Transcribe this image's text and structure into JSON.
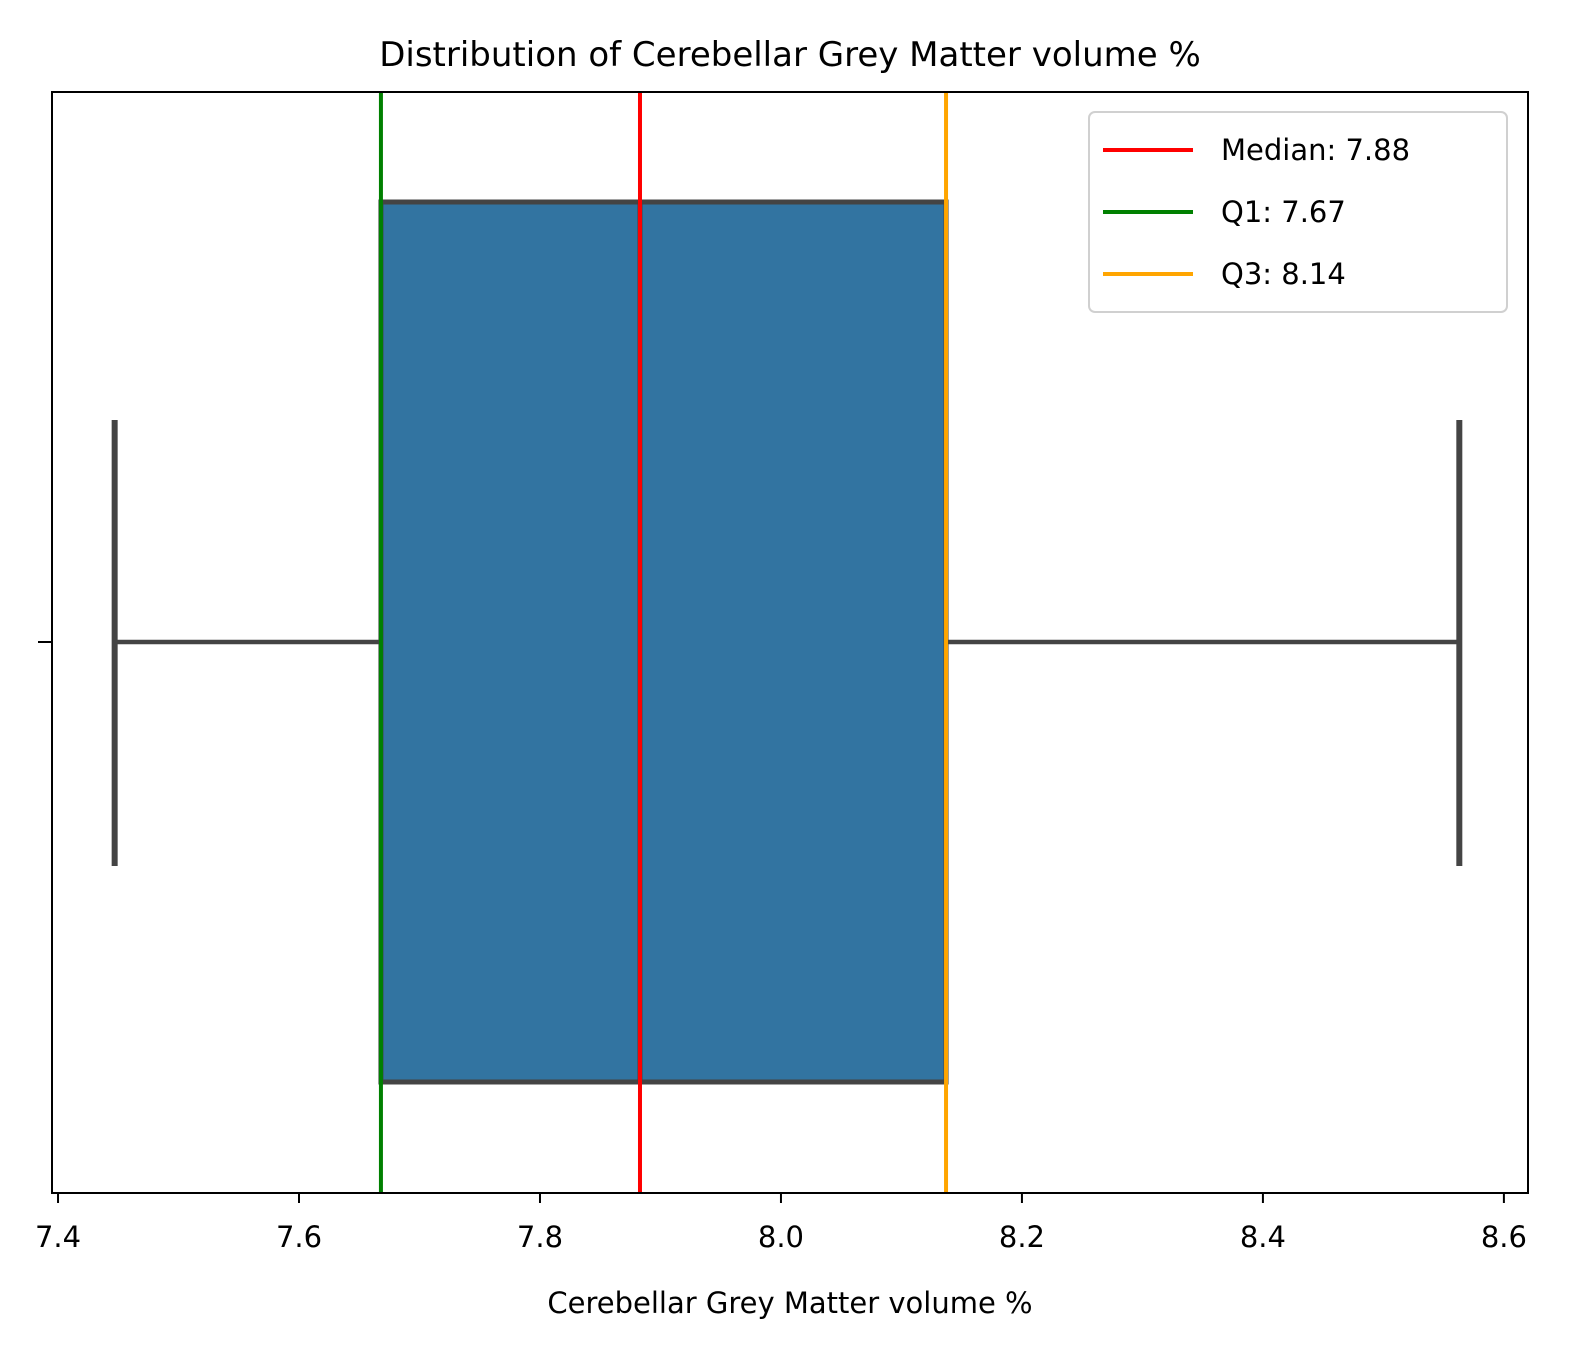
{
  "chart_data": {
    "type": "box",
    "title": "Distribution of Cerebellar Grey Matter volume %",
    "xlabel": "Cerebellar Grey Matter volume %",
    "ylabel": "",
    "xlim": [
      7.395,
      8.62
    ],
    "xticks": [
      {
        "value": 7.4,
        "label": "7.4"
      },
      {
        "value": 7.6,
        "label": "7.6"
      },
      {
        "value": 7.8,
        "label": "7.8"
      },
      {
        "value": 8.0,
        "label": "8.0"
      },
      {
        "value": 8.2,
        "label": "8.2"
      },
      {
        "value": 8.4,
        "label": "8.4"
      },
      {
        "value": 8.6,
        "label": "8.6"
      }
    ],
    "box": {
      "whisker_low": 7.447,
      "q1": 7.668,
      "median": 7.883,
      "q3": 8.137,
      "whisker_high": 8.563,
      "fill_color": "#3274a1",
      "line_color": "#444444"
    },
    "reference_lines": [
      {
        "name": "Median: 7.88",
        "value": 7.883,
        "color": "#ff0000"
      },
      {
        "name": "Q1: 7.67",
        "value": 7.668,
        "color": "#008000"
      },
      {
        "name": "Q3: 8.14",
        "value": 8.137,
        "color": "#ffa500"
      }
    ],
    "legend": {
      "position": "upper-right"
    },
    "grid": false
  }
}
